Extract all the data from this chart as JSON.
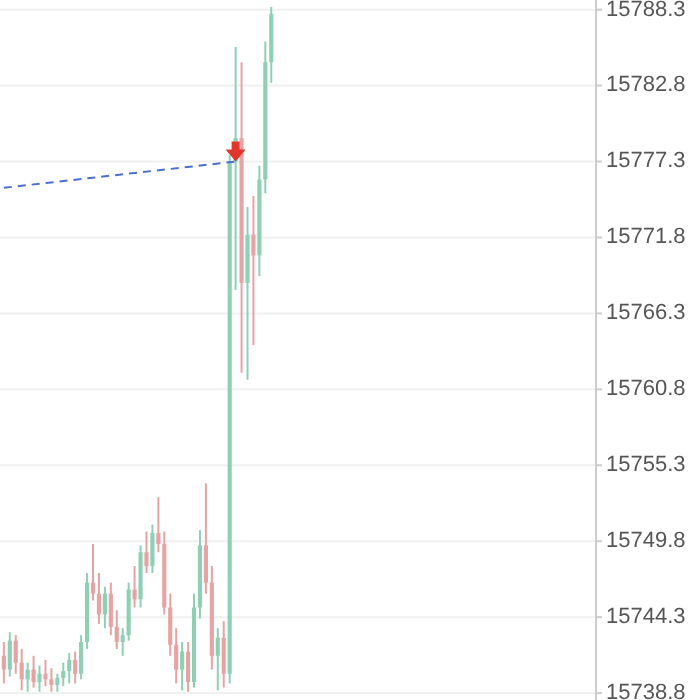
{
  "chart_data": {
    "type": "candlestick",
    "categories": [
      null,
      null,
      null,
      null,
      null,
      null,
      null,
      null,
      null,
      null,
      null,
      null,
      null,
      null,
      null,
      null,
      null,
      null,
      null,
      null,
      null,
      null,
      null,
      null,
      null,
      null,
      null,
      null,
      null,
      null,
      null,
      null,
      null,
      null,
      null,
      null,
      null,
      null,
      null,
      null,
      null,
      null,
      null,
      null,
      null,
      null,
      null,
      null,
      null,
      null,
      null,
      null,
      null,
      null,
      null,
      null,
      null,
      null,
      null,
      null,
      null,
      null,
      null,
      null,
      null,
      null,
      null,
      null,
      null,
      null,
      null,
      null,
      null,
      null,
      null,
      null,
      null,
      null,
      null,
      null,
      null,
      null,
      null,
      null,
      null,
      null,
      null,
      null,
      null,
      null,
      null,
      null,
      null,
      null,
      null,
      null,
      null,
      null,
      null,
      null
    ],
    "ohlc": [
      [
        15741.5,
        15742.5,
        15739.5,
        15740.5
      ],
      [
        15740.5,
        15743.2,
        15740.0,
        15742.6
      ],
      [
        15742.6,
        15743.0,
        15740.2,
        15741.0
      ],
      [
        15741.0,
        15742.0,
        15739.0,
        15739.8
      ],
      [
        15739.8,
        15741.0,
        15738.9,
        15740.5
      ],
      [
        15740.5,
        15741.5,
        15739.2,
        15739.6
      ],
      [
        15739.6,
        15740.8,
        15738.9,
        15740.2
      ],
      [
        15740.2,
        15741.2,
        15739.3,
        15739.8
      ],
      [
        15739.8,
        15740.6,
        15738.9,
        15739.4
      ],
      [
        15739.4,
        15740.2,
        15738.9,
        15739.9
      ],
      [
        15739.9,
        15741.0,
        15739.3,
        15740.4
      ],
      [
        15740.4,
        15741.7,
        15739.5,
        15741.2
      ],
      [
        15741.2,
        15741.8,
        15739.5,
        15740.2
      ],
      [
        15740.2,
        15743.0,
        15739.8,
        15742.5
      ],
      [
        15742.5,
        15747.5,
        15742.0,
        15746.8
      ],
      [
        15746.8,
        15749.6,
        15745.5,
        15746.0
      ],
      [
        15746.0,
        15747.5,
        15743.8,
        15744.5
      ],
      [
        15744.5,
        15746.5,
        15743.5,
        15746.0
      ],
      [
        15746.0,
        15746.8,
        15743.0,
        15743.6
      ],
      [
        15743.6,
        15744.8,
        15742.0,
        15742.5
      ],
      [
        15742.5,
        15743.5,
        15741.5,
        15743.0
      ],
      [
        15743.0,
        15746.8,
        15742.6,
        15746.3
      ],
      [
        15746.3,
        15748.0,
        15745.0,
        15745.6
      ],
      [
        15745.6,
        15749.5,
        15745.0,
        15749.0
      ],
      [
        15749.0,
        15750.5,
        15747.5,
        15748.0
      ],
      [
        15748.0,
        15751.0,
        15747.5,
        15750.4
      ],
      [
        15750.4,
        15753.0,
        15749.0,
        15749.6
      ],
      [
        15749.6,
        15750.5,
        15744.5,
        15745.0
      ],
      [
        15745.0,
        15746.0,
        15741.5,
        15742.3
      ],
      [
        15742.3,
        15743.5,
        15739.5,
        15740.5
      ],
      [
        15740.5,
        15742.5,
        15739.0,
        15741.8
      ],
      [
        15741.8,
        15742.5,
        15738.9,
        15739.6
      ],
      [
        15739.6,
        15746.0,
        15739.2,
        15745.0
      ],
      [
        15745.0,
        15750.6,
        15744.2,
        15749.5
      ],
      [
        15749.5,
        15754.0,
        15746.0,
        15746.8
      ],
      [
        15746.8,
        15748.0,
        15740.5,
        15741.5
      ],
      [
        15741.5,
        15743.5,
        15739.0,
        15742.8
      ],
      [
        15742.8,
        15744.0,
        15739.2,
        15740.2
      ],
      [
        15740.2,
        15777.8,
        15739.5,
        15777.3
      ],
      [
        15777.3,
        15785.6,
        15768.0,
        15779.0
      ],
      [
        15779.0,
        15784.5,
        15762.0,
        15768.5
      ],
      [
        15768.5,
        15774.0,
        15761.5,
        15772.0
      ],
      [
        15772.0,
        15774.8,
        15764.0,
        15770.5
      ],
      [
        15770.5,
        15777.0,
        15769.0,
        15776.0
      ],
      [
        15776.0,
        15786.0,
        15775.0,
        15784.5
      ],
      [
        15784.5,
        15788.5,
        15783.0,
        15788.0
      ],
      null,
      null,
      null,
      null,
      null,
      null,
      null,
      null,
      null,
      null,
      null,
      null,
      null,
      null,
      null,
      null,
      null,
      null,
      null,
      null,
      null,
      null,
      null,
      null,
      null,
      null,
      null,
      null,
      null,
      null,
      null,
      null,
      null,
      null,
      null,
      null,
      null,
      null,
      null,
      null,
      null,
      null,
      null,
      null,
      null,
      null,
      null,
      null,
      null,
      null,
      null,
      null,
      null,
      null
    ],
    "colors": [
      "#e6a3a3",
      "#8fcfb4",
      "#e6a3a3",
      "#e6a3a3",
      "#8fcfb4",
      "#e6a3a3",
      "#8fcfb4",
      "#e6a3a3",
      "#e6a3a3",
      "#8fcfb4",
      "#8fcfb4",
      "#8fcfb4",
      "#e6a3a3",
      "#8fcfb4",
      "#8fcfb4",
      "#e6a3a3",
      "#e6a3a3",
      "#8fcfb4",
      "#e6a3a3",
      "#e6a3a3",
      "#8fcfb4",
      "#8fcfb4",
      "#e6a3a3",
      "#8fcfb4",
      "#e6a3a3",
      "#8fcfb4",
      "#e6a3a3",
      "#e6a3a3",
      "#e6a3a3",
      "#e6a3a3",
      "#8fcfb4",
      "#e6a3a3",
      "#8fcfb4",
      "#8fcfb4",
      "#e6a3a3",
      "#e6a3a3",
      "#8fcfb4",
      "#e6a3a3",
      "#8fcfb4",
      "#8fcfb4",
      "#e6a3a3",
      "#8fcfb4",
      "#e6a3a3",
      "#8fcfb4",
      "#8fcfb4",
      "#8fcfb4",
      null,
      null,
      null,
      null,
      null,
      null,
      null,
      null,
      null,
      null,
      null,
      null,
      null,
      null,
      null,
      null,
      null,
      null,
      null,
      null,
      null,
      null,
      null,
      null,
      null,
      null,
      null,
      null,
      null,
      null,
      null,
      null,
      null,
      null,
      null,
      null,
      null,
      null,
      null,
      null,
      null,
      null,
      null,
      null,
      null,
      null,
      null,
      null,
      null,
      null,
      null,
      null,
      null,
      null
    ],
    "series": [
      {
        "type": "line",
        "color": "#4a6fd0",
        "line_style": "dashed",
        "marker": "none",
        "values": [
          15775.4,
          null,
          null,
          null,
          null,
          null,
          null,
          null,
          null,
          null,
          null,
          null,
          null,
          null,
          null,
          null,
          null,
          null,
          null,
          null,
          null,
          null,
          null,
          null,
          null,
          null,
          null,
          null,
          null,
          null,
          null,
          null,
          null,
          null,
          null,
          null,
          null,
          null,
          null,
          15777.3,
          null,
          null,
          null,
          null,
          null,
          null,
          null,
          null,
          null,
          null,
          null,
          null,
          null,
          null,
          null,
          null,
          null,
          null,
          null,
          null,
          null,
          null,
          null,
          null,
          null,
          null,
          null,
          null,
          null,
          null,
          null,
          null,
          null,
          null,
          null,
          null,
          null,
          null,
          null,
          null,
          null,
          null,
          null,
          null,
          null,
          null,
          null,
          null,
          null,
          null,
          null,
          null,
          null,
          null,
          null,
          null,
          null,
          null,
          null,
          null
        ]
      }
    ],
    "ylim": [
      15738.3,
      15789.0
    ],
    "yticks": [
      15738.8,
      15744.3,
      15749.8,
      15755.3,
      15760.8,
      15766.3,
      15771.8,
      15777.3,
      15782.8,
      15788.3
    ],
    "tick_labels": "y",
    "grid": "y"
  }
}
